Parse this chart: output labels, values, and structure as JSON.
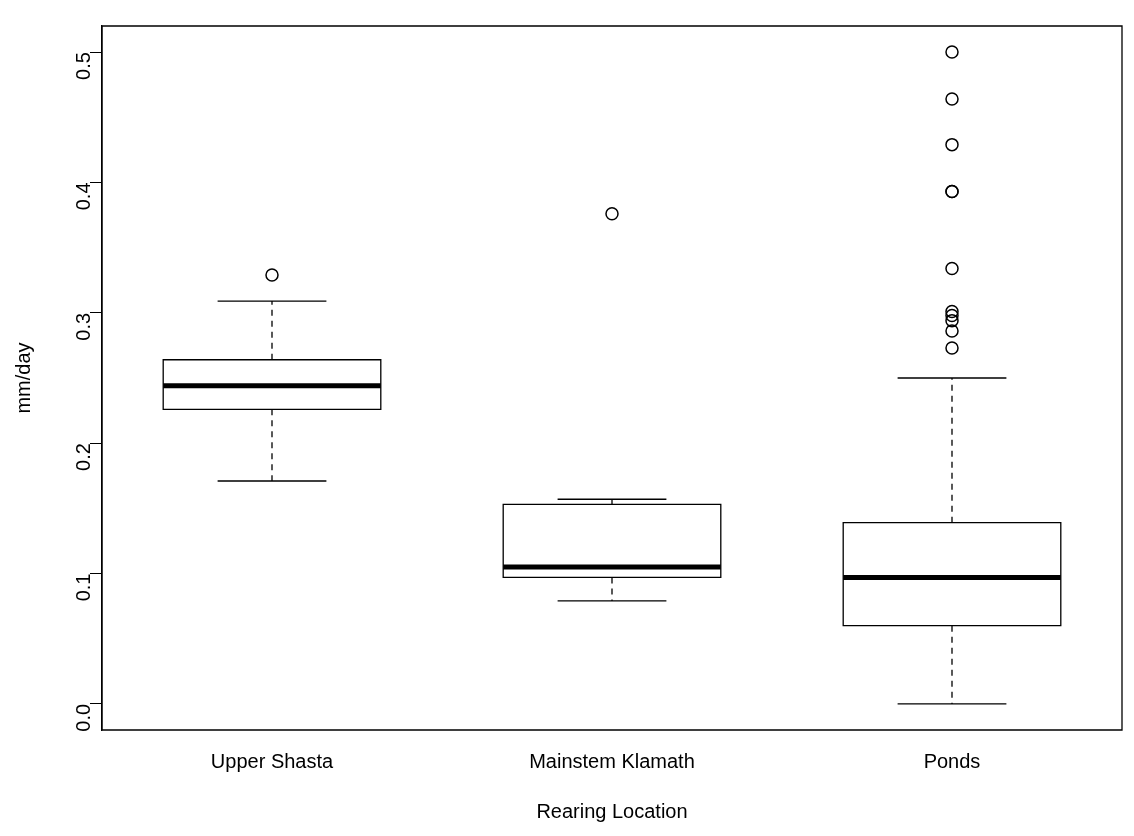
{
  "chart_data": {
    "type": "box",
    "xlabel": "Rearing Location",
    "ylabel": "mm/day",
    "categories": [
      "Upper Shasta",
      "Mainstem Klamath",
      "Ponds"
    ],
    "boxes": [
      {
        "low": 0.171,
        "q1": 0.226,
        "median": 0.244,
        "q3": 0.264,
        "high": 0.309,
        "outliers": [
          0.329
        ]
      },
      {
        "low": 0.079,
        "q1": 0.097,
        "median": 0.105,
        "q3": 0.153,
        "high": 0.157,
        "outliers": [
          0.376
        ]
      },
      {
        "low": 0.0,
        "q1": 0.06,
        "median": 0.097,
        "q3": 0.139,
        "high": 0.25,
        "outliers": [
          0.5,
          0.464,
          0.429,
          0.393,
          0.393,
          0.334,
          0.301,
          0.298,
          0.294,
          0.286,
          0.273
        ]
      }
    ],
    "ylim": [
      -0.02,
      0.52
    ],
    "yticks": [
      {
        "value": 0,
        "label": "0.0"
      },
      0.1,
      0.2,
      0.3,
      0.4,
      0.5
    ],
    "grid": false
  }
}
